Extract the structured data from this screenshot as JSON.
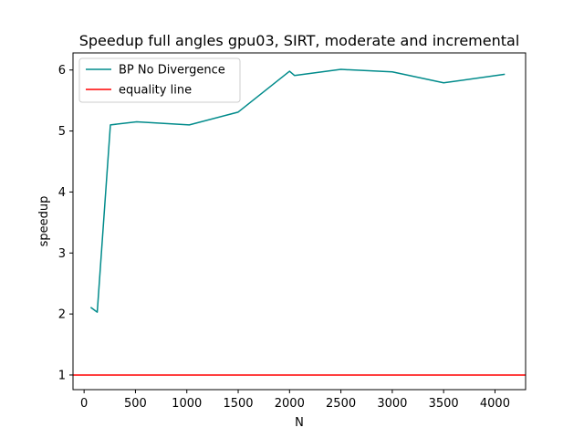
{
  "chart_data": {
    "type": "line",
    "title": "Speedup full angles gpu03, SIRT, moderate and incremental",
    "xlabel": "N",
    "ylabel": "speedup",
    "xlim": [
      -108,
      4298
    ],
    "ylim": [
      0.76,
      6.28
    ],
    "xticks": [
      0,
      500,
      1000,
      1500,
      2000,
      2500,
      3000,
      3500,
      4000
    ],
    "yticks": [
      1,
      2,
      3,
      4,
      5,
      6
    ],
    "grid": false,
    "legend_position": "top-left",
    "series": [
      {
        "name": "BP No Divergence",
        "color": "#008b8b",
        "x": [
          64,
          128,
          256,
          512,
          1024,
          1500,
          2000,
          2048,
          2500,
          3000,
          3500,
          4096
        ],
        "y": [
          2.11,
          2.03,
          5.1,
          5.15,
          5.1,
          5.31,
          5.98,
          5.91,
          6.01,
          5.97,
          5.79,
          5.93
        ]
      },
      {
        "name": "equality line",
        "color": "#ff0000",
        "constant_y": 1
      }
    ]
  }
}
